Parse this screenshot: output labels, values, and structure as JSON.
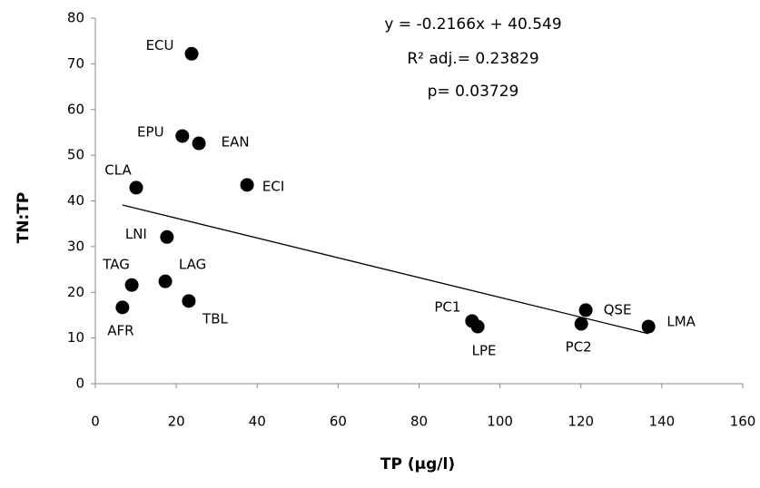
{
  "chart_data": {
    "type": "scatter",
    "x_label": "TP (μg/l)",
    "y_label": "TN:TP",
    "annotations": [
      "y = -0.2166x + 40.549",
      "R² adj.= 0.23829",
      "p= 0.03729"
    ],
    "trendline": {
      "slope": -0.2166,
      "intercept": 40.549
    },
    "labels": [
      "ECU",
      "EPU",
      "EAN",
      "CLA",
      "ECI",
      "LNI",
      "LAG",
      "TAG",
      "TBL",
      "AFR",
      "PC1",
      "LPE",
      "PC2",
      "QSE",
      "LMA"
    ],
    "x": [
      23.8,
      21.5,
      25.6,
      10.1,
      37.5,
      17.7,
      17.3,
      9.0,
      23.1,
      6.7,
      93.1,
      94.5,
      120.1,
      121.2,
      136.7
    ],
    "values": [
      72.2,
      54.2,
      52.6,
      42.9,
      43.5,
      32.1,
      22.4,
      21.6,
      18.1,
      16.7,
      13.7,
      12.5,
      13.1,
      16.1,
      12.5
    ],
    "color": "#000000",
    "xlim": [
      0,
      160
    ],
    "xticks": [
      0,
      20,
      40,
      60,
      80,
      100,
      120,
      140,
      160
    ],
    "ylim": [
      0,
      80
    ],
    "yticks": [
      0,
      10,
      20,
      30,
      40,
      50,
      60,
      70,
      80
    ],
    "grid": false
  }
}
